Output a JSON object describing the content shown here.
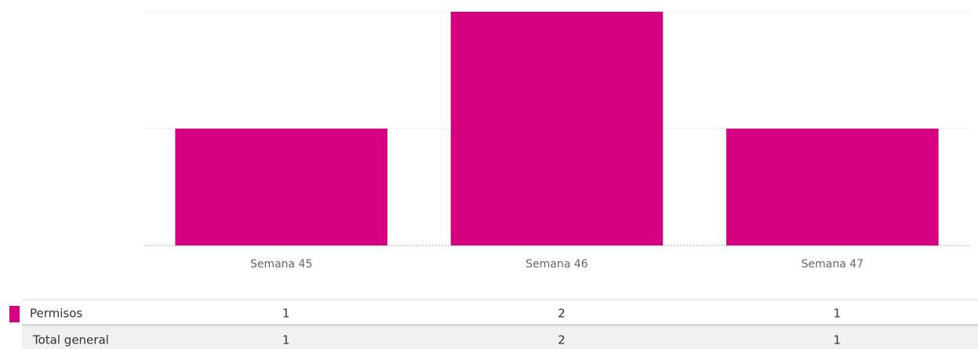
{
  "chart_data": {
    "type": "bar",
    "categories": [
      "Semana 45",
      "Semana 46",
      "Semana 47"
    ],
    "series": [
      {
        "name": "Permisos",
        "color": "#d5007f",
        "values": [
          1,
          2,
          1
        ]
      }
    ],
    "ylim": [
      0,
      2
    ],
    "yticks": [
      1,
      2
    ],
    "grid": true,
    "totals": {
      "label": "Total general",
      "values": [
        1,
        2,
        1
      ]
    }
  }
}
